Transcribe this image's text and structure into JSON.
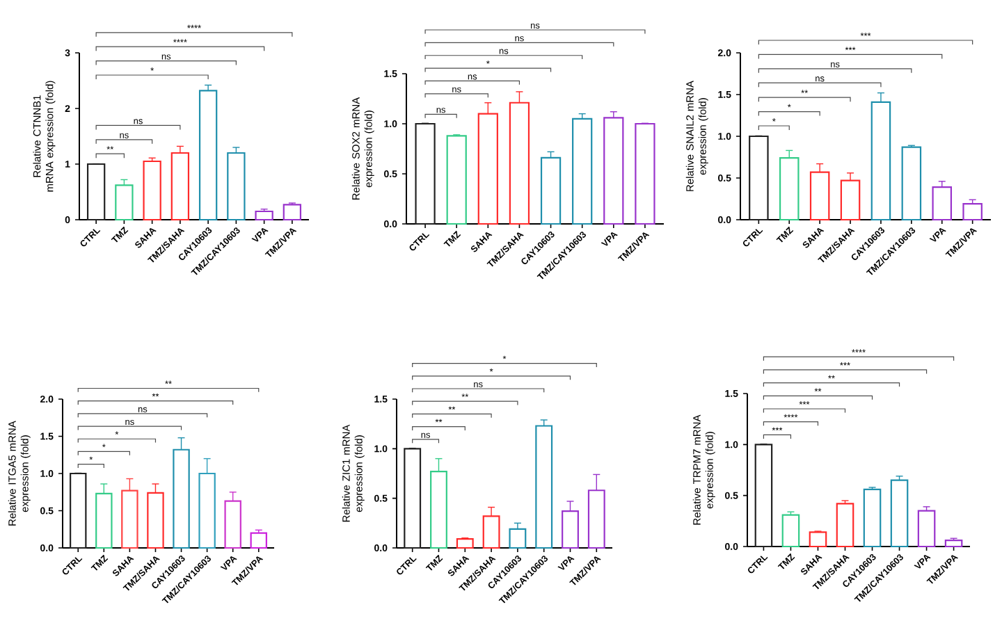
{
  "chart_data": [
    {
      "type": "bar",
      "ylabel": "Relative CTNNB1 mRNA expression (fold)",
      "categories": [
        "CTRL",
        "TMZ",
        "SAHA",
        "TMZ/SAHA",
        "CAY10603",
        "TMZ/CAY10603",
        "VPA",
        "TMZ/VPA"
      ],
      "values": [
        1.0,
        0.62,
        1.05,
        1.2,
        2.32,
        1.2,
        0.15,
        0.27
      ],
      "errors": [
        0.005,
        0.1,
        0.06,
        0.12,
        0.1,
        0.1,
        0.04,
        0.03
      ],
      "colors": [
        "#222222",
        "#33cc88",
        "#ff2a2a",
        "#ff2a2a",
        "#1f8fac",
        "#1f8fac",
        "#9933cc",
        "#9933cc"
      ],
      "ylim": [
        0,
        3
      ],
      "yticks": [
        0,
        1,
        2,
        3
      ],
      "annotations": [
        "**",
        "ns",
        "ns",
        "*",
        "ns",
        "****",
        "****"
      ]
    },
    {
      "type": "bar",
      "ylabel": "Relative SOX2 mRNA expression (fold)",
      "categories": [
        "CTRL",
        "TMZ",
        "SAHA",
        "TMZ/SAHA",
        "CAY10603",
        "TMZ/CAY10603",
        "VPA",
        "TMZ/VPA"
      ],
      "values": [
        1.0,
        0.88,
        1.1,
        1.21,
        0.66,
        1.05,
        1.06,
        1.0
      ],
      "errors": [
        0.005,
        0.01,
        0.11,
        0.11,
        0.06,
        0.05,
        0.06,
        0.005
      ],
      "colors": [
        "#222222",
        "#33cc88",
        "#ff2a2a",
        "#ff2a2a",
        "#1f8fac",
        "#1f8fac",
        "#9933cc",
        "#9933cc"
      ],
      "ylim": [
        0,
        1.5
      ],
      "yticks": [
        {
          "value": 0,
          "label": "0.0"
        },
        {
          "value": 0.5,
          "label": "0.5"
        },
        {
          "value": 1,
          "label": "1.0"
        },
        {
          "value": 1.5,
          "label": "1.5"
        }
      ],
      "annotations": [
        "ns",
        "ns",
        "ns",
        "*",
        "ns",
        "ns",
        "ns"
      ]
    },
    {
      "type": "bar",
      "ylabel": "Relative SNAIL2 mRNA expression (fold)",
      "categories": [
        "CTRL",
        "TMZ",
        "SAHA",
        "TMZ/SAHA",
        "CAY10603",
        "TMZ/CAY10603",
        "VPA",
        "TMZ/VPA"
      ],
      "values": [
        1.0,
        0.74,
        0.57,
        0.47,
        1.41,
        0.87,
        0.39,
        0.19
      ],
      "errors": [
        0.005,
        0.09,
        0.1,
        0.09,
        0.11,
        0.02,
        0.07,
        0.05
      ],
      "colors": [
        "#222222",
        "#33cc88",
        "#ff2a2a",
        "#ff2a2a",
        "#1f8fac",
        "#1f8fac",
        "#9933cc",
        "#9933cc"
      ],
      "ylim": [
        0,
        2
      ],
      "yticks": [
        {
          "value": 0,
          "label": "0.0"
        },
        {
          "value": 0.5,
          "label": "0.5"
        },
        {
          "value": 1,
          "label": "1.0"
        },
        {
          "value": 1.5,
          "label": "1.5"
        },
        {
          "value": 2,
          "label": "2.0"
        }
      ],
      "annotations": [
        "*",
        "*",
        "**",
        "ns",
        "ns",
        "***",
        "***"
      ]
    },
    {
      "type": "bar",
      "ylabel": "Relative ITGA5 mRNA expression (fold)",
      "categories": [
        "CTRL",
        "TMZ",
        "SAHA",
        "TMZ/SAHA",
        "CAY10603",
        "TMZ/CAY10603",
        "VPA",
        "TMZ/VPA"
      ],
      "values": [
        1.0,
        0.73,
        0.77,
        0.74,
        1.32,
        1.0,
        0.63,
        0.2
      ],
      "errors": [
        0.005,
        0.13,
        0.16,
        0.12,
        0.16,
        0.2,
        0.12,
        0.04
      ],
      "colors": [
        "#222222",
        "#33cc88",
        "#ff4444",
        "#ff2a2a",
        "#1f8fac",
        "#2f9fbc",
        "#cc33cc",
        "#cc22dd"
      ],
      "ylim": [
        0,
        2
      ],
      "yticks": [
        {
          "value": 0,
          "label": "0.0"
        },
        {
          "value": 0.5,
          "label": "0.5"
        },
        {
          "value": 1,
          "label": "1.0"
        },
        {
          "value": 1.5,
          "label": "1.5"
        },
        {
          "value": 2,
          "label": "2.0"
        }
      ],
      "annotations": [
        "*",
        "*",
        "*",
        "ns",
        "ns",
        "**",
        "**"
      ]
    },
    {
      "type": "bar",
      "ylabel": "Relative ZIC1 mRNA expression (fold)",
      "categories": [
        "CTRL",
        "TMZ",
        "SAHA",
        "TMZ/SAHA",
        "CAY10603",
        "TMZ/CAY10603",
        "VPA",
        "TMZ/VPA"
      ],
      "values": [
        1.0,
        0.77,
        0.09,
        0.32,
        0.19,
        1.23,
        0.37,
        0.58
      ],
      "errors": [
        0.005,
        0.13,
        0.01,
        0.09,
        0.06,
        0.06,
        0.1,
        0.16
      ],
      "colors": [
        "#222222",
        "#33cc88",
        "#ff2a2a",
        "#ff2a2a",
        "#1f8fac",
        "#1f8fac",
        "#9933cc",
        "#9933cc"
      ],
      "ylim": [
        0,
        1.5
      ],
      "yticks": [
        {
          "value": 0,
          "label": "0.0"
        },
        {
          "value": 0.5,
          "label": "0.5"
        },
        {
          "value": 1,
          "label": "1.0"
        },
        {
          "value": 1.5,
          "label": "1.5"
        }
      ],
      "annotations": [
        "ns",
        "**",
        "**",
        "**",
        "ns",
        "*",
        "*"
      ]
    },
    {
      "type": "bar",
      "ylabel": "Relative TRPM7 mRNA expression (fold)",
      "categories": [
        "CTRL",
        "TMZ",
        "SAHA",
        "TMZ/SAHA",
        "CAY10603",
        "TMZ/CAY10603",
        "VPA",
        "TMZ/VPA"
      ],
      "values": [
        1.0,
        0.31,
        0.14,
        0.42,
        0.56,
        0.65,
        0.35,
        0.06
      ],
      "errors": [
        0.005,
        0.03,
        0.01,
        0.03,
        0.02,
        0.04,
        0.04,
        0.02
      ],
      "colors": [
        "#222222",
        "#33cc88",
        "#ff2a2a",
        "#ff2a2a",
        "#1f8fac",
        "#1f8fac",
        "#9933cc",
        "#9933cc"
      ],
      "ylim": [
        0,
        1.5
      ],
      "yticks": [
        {
          "value": 0,
          "label": "0.0"
        },
        {
          "value": 0.5,
          "label": "0.5"
        },
        {
          "value": 1,
          "label": "1.0"
        },
        {
          "value": 1.5,
          "label": "1.5"
        }
      ],
      "annotations": [
        "***",
        "****",
        "***",
        "**",
        "**",
        "***",
        "****"
      ]
    }
  ]
}
